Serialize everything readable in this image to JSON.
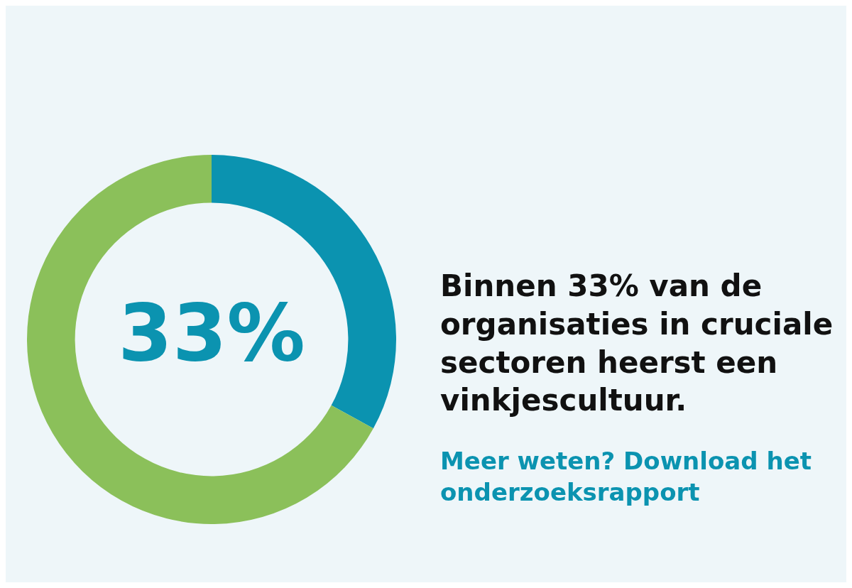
{
  "chart_data": {
    "type": "donut",
    "title": "Binnen 33% van de organisaties in cruciale sectoren heerst een vinkjescultuur.",
    "annotations": [
      "Meer weten? Download het onderzoeksrapport"
    ],
    "categories": [
      null,
      null
    ],
    "values": [
      33,
      67
    ],
    "colors": [
      "#0b93b0",
      "#8bc05a"
    ],
    "value_labels": [
      "33%",
      null
    ]
  }
}
